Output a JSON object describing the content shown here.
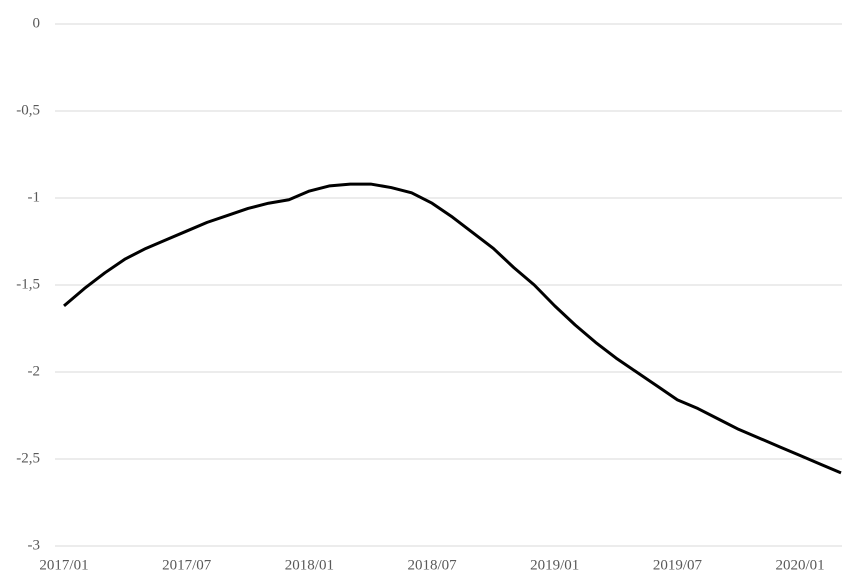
{
  "chart_data": {
    "type": "line",
    "categories": [
      "2017/01",
      null,
      null,
      null,
      null,
      null,
      "2017/07",
      null,
      null,
      null,
      null,
      null,
      "2018/01",
      null,
      null,
      null,
      null,
      null,
      "2018/07",
      null,
      null,
      null,
      null,
      null,
      "2019/01",
      null,
      null,
      null,
      null,
      null,
      "2019/07",
      null,
      null,
      null,
      null,
      null,
      "2020/01",
      null,
      null
    ],
    "series": [
      {
        "color": "#000000",
        "values": [
          -1.62,
          -1.52,
          -1.43,
          -1.35,
          -1.29,
          -1.24,
          -1.19,
          -1.14,
          -1.1,
          -1.06,
          -1.03,
          -1.01,
          -0.96,
          -0.93,
          -0.92,
          -0.92,
          -0.94,
          -0.97,
          -1.03,
          -1.11,
          -1.2,
          -1.29,
          -1.4,
          -1.5,
          -1.62,
          -1.73,
          -1.83,
          -1.92,
          -2.0,
          -2.08,
          -2.16,
          -2.21,
          -2.27,
          -2.33,
          -2.38,
          -2.43,
          -2.48,
          -2.53,
          -2.58
        ]
      }
    ],
    "ylim": [
      -3,
      0
    ],
    "yticks": [
      0,
      {
        "value": -0.5,
        "label": "-0,5"
      },
      -1,
      {
        "value": -1.5,
        "label": "-1,5"
      },
      -2,
      {
        "value": -2.5,
        "label": "-2,5"
      },
      -3
    ],
    "grid": true
  }
}
